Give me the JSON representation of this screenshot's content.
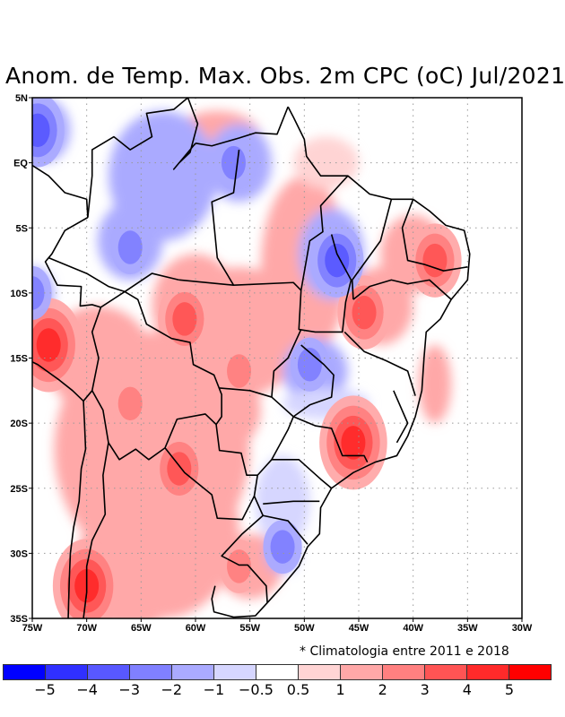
{
  "title": "Anom. de Temp. Max. Obs. 2m CPC (oC) Jul/2021",
  "note": "* Climatologia entre 2011 e 2018",
  "map": {
    "type": "filled-contour",
    "variable": "Maximum temperature anomaly at 2m",
    "units": "oC",
    "period": "Jul/2021",
    "lon_range": [
      -75,
      -30
    ],
    "lat_range": [
      -35,
      5
    ],
    "x_ticks": [
      "75W",
      "70W",
      "65W",
      "60W",
      "55W",
      "50W",
      "45W",
      "40W",
      "35W",
      "30W"
    ],
    "y_ticks": [
      "5N",
      "EQ",
      "5S",
      "10S",
      "15S",
      "20S",
      "25S",
      "30S",
      "35S"
    ],
    "gridlines": "dotted",
    "features": [
      {
        "label": "warm anomaly core",
        "lon": -73.5,
        "lat": -14,
        "level": 4
      },
      {
        "label": "warm anomaly core",
        "lon": -61,
        "lat": -12,
        "level": 3
      },
      {
        "label": "warm anomaly core",
        "lon": -61.5,
        "lat": -23.5,
        "level": 3
      },
      {
        "label": "warm anomaly core",
        "lon": -70,
        "lat": -32.5,
        "level": 4
      },
      {
        "label": "warm anomaly core",
        "lon": -44.5,
        "lat": -11.5,
        "level": 3
      },
      {
        "label": "warm anomaly core",
        "lon": -38,
        "lat": -7.5,
        "level": 3
      },
      {
        "label": "warm anomaly core",
        "lon": -45.5,
        "lat": -21.5,
        "level": 4
      },
      {
        "label": "warm anomaly",
        "lon": -56,
        "lat": -16,
        "level": 2
      },
      {
        "label": "warm anomaly",
        "lon": -66,
        "lat": -18.5,
        "level": 2
      },
      {
        "label": "warm anomaly",
        "lon": -56,
        "lat": -31,
        "level": 2
      },
      {
        "label": "cold anomaly core",
        "lon": -74.5,
        "lat": 2.5,
        "level": -3
      },
      {
        "label": "cold anomaly core",
        "lon": -66,
        "lat": -6.5,
        "level": -2
      },
      {
        "label": "cold anomaly core",
        "lon": -56.5,
        "lat": 0,
        "level": -2
      },
      {
        "label": "cold anomaly core",
        "lon": -47,
        "lat": -7.5,
        "level": -3
      },
      {
        "label": "cold anomaly core",
        "lon": -75,
        "lat": -10,
        "level": -2
      },
      {
        "label": "cold anomaly core",
        "lon": -49.5,
        "lat": -15.5,
        "level": -2
      },
      {
        "label": "cold anomaly",
        "lon": -52,
        "lat": -29.5,
        "level": -2
      }
    ]
  },
  "colorbar": {
    "colors": [
      "#0000ff",
      "#3030ff",
      "#5858ff",
      "#8080ff",
      "#aaaaff",
      "#d6d6ff",
      "#ffffff",
      "#ffd4d4",
      "#ffa8a8",
      "#ff8080",
      "#ff5454",
      "#ff2a2a",
      "#ff0000"
    ],
    "labels": [
      "−5",
      "−4",
      "−3",
      "−2",
      "−1",
      "−0.5",
      "0.5",
      "1",
      "2",
      "3",
      "4",
      "5"
    ],
    "levels": [
      -5,
      -4,
      -3,
      -2,
      -1,
      -0.5,
      0.5,
      1,
      2,
      3,
      4,
      5
    ]
  }
}
